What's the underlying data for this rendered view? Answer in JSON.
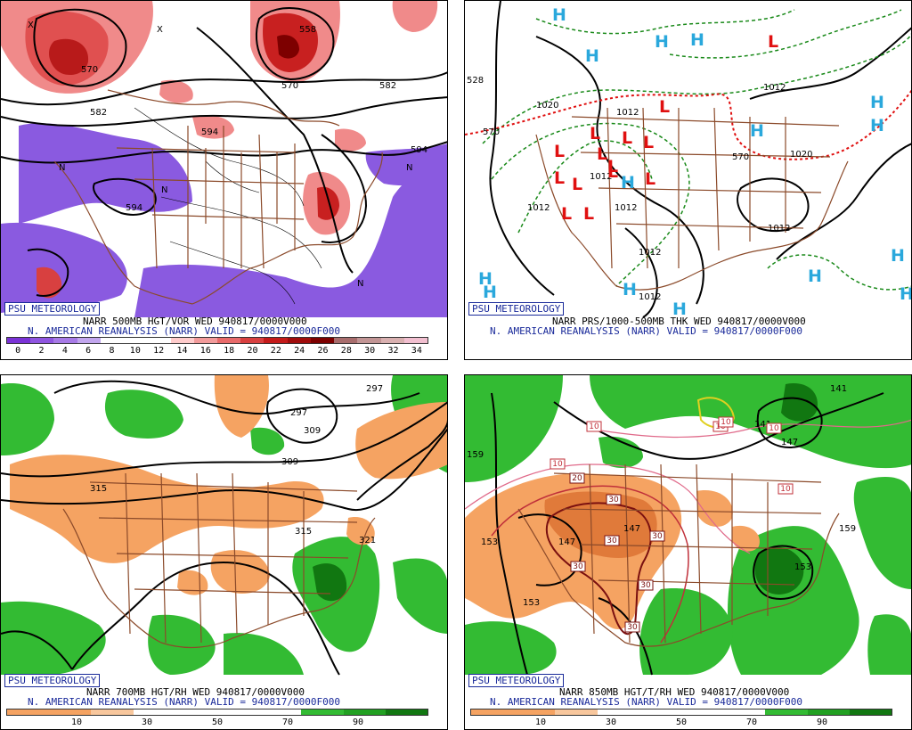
{
  "badge_text": "PSU METEOROLOGY",
  "panels": {
    "p500": {
      "line1": "NARR 500MB HGT/VOR WED 940817/0000V000",
      "line2": "N. AMERICAN REANALYSIS (NARR) VALID = 940817/0000F000",
      "colorbar": {
        "colors": [
          "#7a32d6",
          "#8f55e0",
          "#a77ae6",
          "#c2a6ee",
          "#ffffff",
          "#ffffff",
          "#ffffff",
          "#ffcccc",
          "#f29b9b",
          "#e86a6a",
          "#d84040",
          "#c41a1a",
          "#a00c0c",
          "#7d0000",
          "#a86d6d",
          "#c29595",
          "#d9b0b0",
          "#f2bfd0"
        ],
        "ticks": [
          "0",
          "2",
          "4",
          "6",
          "8",
          "10",
          "12",
          "14",
          "16",
          "18",
          "20",
          "22",
          "24",
          "26",
          "28",
          "30",
          "32",
          "34"
        ]
      },
      "contour_labels": [
        "570",
        "558",
        "570",
        "582",
        "594",
        "582",
        "594",
        "594"
      ],
      "vort_marks": [
        "X",
        "X",
        "N",
        "N",
        "N",
        "N"
      ]
    },
    "pprs": {
      "line1": "NARR PRS/1000-500MB THK WED 940817/0000V000",
      "line2": "N. AMERICAN REANALYSIS (NARR) VALID = 940817/0000F000",
      "contour_labels": [
        "1012",
        "1020",
        "1012",
        "1012",
        "1012",
        "1012",
        "1012",
        "1012",
        "1020",
        "1012",
        "528",
        "570",
        "570"
      ],
      "high_letter": "H",
      "low_letter": "L",
      "colors": {
        "high": "#2aa8dc",
        "low": "#e01010"
      }
    },
    "p700": {
      "line1": "NARR 700MB HGT/RH WED 940817/0000V000",
      "line2": "N. AMERICAN REANALYSIS (NARR) VALID = 940817/0000F000",
      "colorbar": {
        "colors": [
          "#f5a362",
          "#f5a362",
          "#f8c79d",
          "#ffffff",
          "#ffffff",
          "#ffffff",
          "#ffffff",
          "#33bb33",
          "#22a022",
          "#117711"
        ],
        "ticks": [
          "10",
          "30",
          "50",
          "70",
          "90"
        ]
      },
      "contour_labels": [
        "315",
        "309",
        "309",
        "297",
        "315",
        "321",
        "297"
      ]
    },
    "p850": {
      "line1": "NARR 850MB HGT/T/RH WED 940817/0000V000",
      "line2": "N. AMERICAN REANALYSIS (NARR) VALID = 940817/0000F000",
      "colorbar": {
        "colors": [
          "#f5a362",
          "#f5a362",
          "#f8c79d",
          "#ffffff",
          "#ffffff",
          "#ffffff",
          "#ffffff",
          "#33bb33",
          "#22a022",
          "#117711"
        ],
        "ticks": [
          "10",
          "30",
          "50",
          "70",
          "90"
        ]
      },
      "contour_labels": [
        "159",
        "153",
        "147",
        "147",
        "153",
        "153",
        "159",
        "141",
        "147",
        "141"
      ],
      "temp_labels": [
        "10",
        "10",
        "10",
        "20",
        "10",
        "10",
        "10",
        "30",
        "30",
        "30",
        "30",
        "30",
        "30"
      ]
    }
  }
}
